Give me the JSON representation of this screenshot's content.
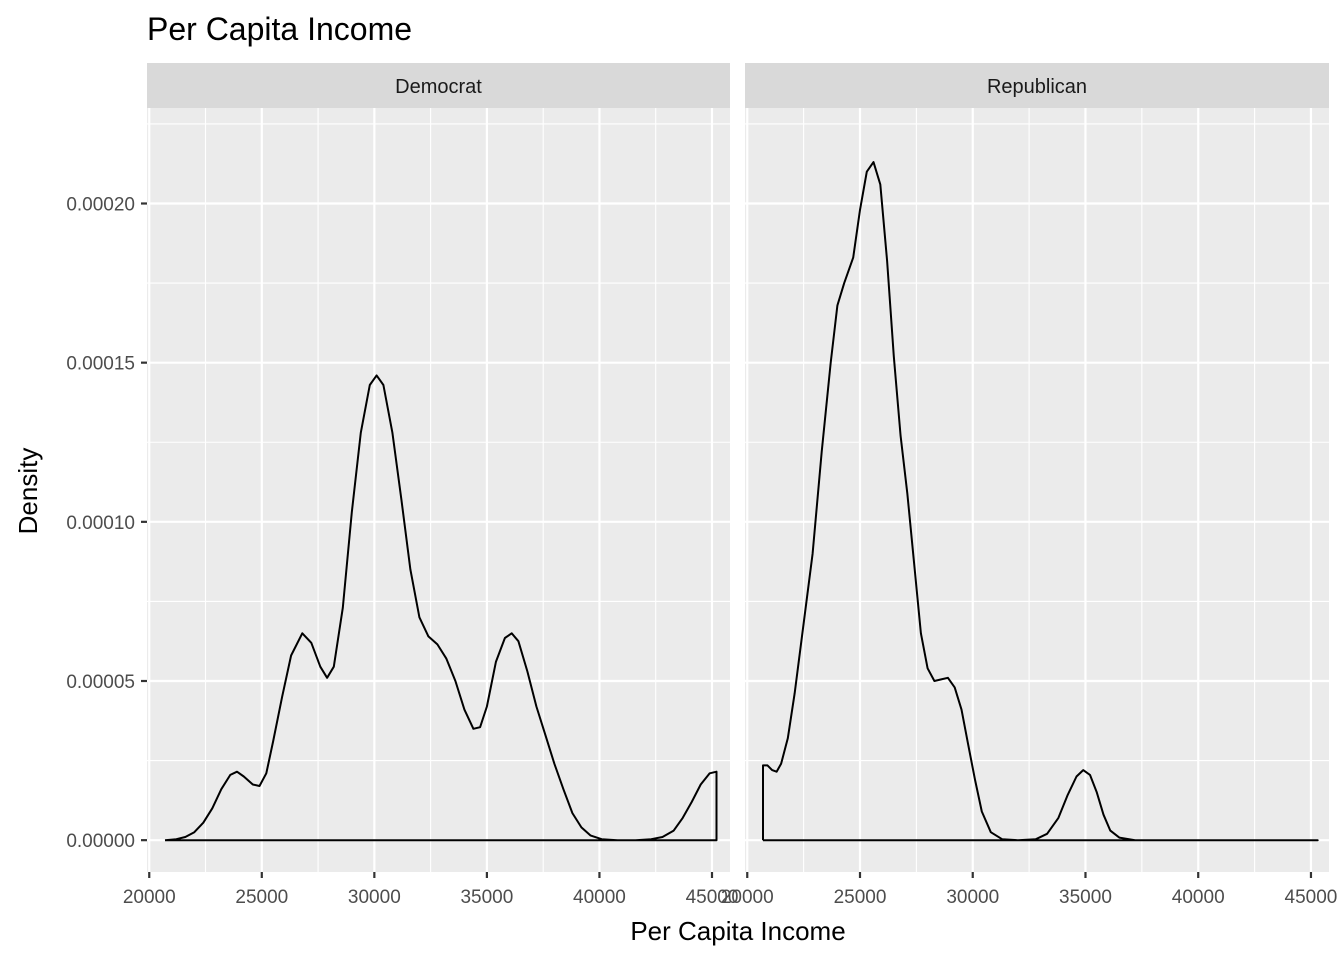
{
  "chart_data": {
    "type": "area",
    "title": "Per Capita Income",
    "xlabel": "Per Capita Income",
    "ylabel": "Density",
    "xlim": [
      19900,
      45800
    ],
    "ylim": [
      -1e-05,
      0.00023
    ],
    "x_ticks": [
      20000,
      25000,
      30000,
      35000,
      40000,
      45000
    ],
    "x_tick_labels": [
      "20000",
      "25000",
      "30000",
      "35000",
      "40000",
      "45000"
    ],
    "y_ticks": [
      0,
      5e-05,
      0.0001,
      0.00015,
      0.0002
    ],
    "y_tick_labels": [
      "0.00000",
      "0.00005",
      "0.00010",
      "0.00015",
      "0.00020"
    ],
    "grid": true,
    "facets": [
      {
        "label": "Democrat",
        "points": [
          [
            20700,
            0
          ],
          [
            21200,
            3e-07
          ],
          [
            21600,
            1e-06
          ],
          [
            22000,
            2.5e-06
          ],
          [
            22400,
            5.5e-06
          ],
          [
            22800,
            1e-05
          ],
          [
            23200,
            1.6e-05
          ],
          [
            23600,
            2.05e-05
          ],
          [
            23900,
            2.15e-05
          ],
          [
            24200,
            2e-05
          ],
          [
            24600,
            1.75e-05
          ],
          [
            24900,
            1.7e-05
          ],
          [
            25200,
            2.1e-05
          ],
          [
            25500,
            3.1e-05
          ],
          [
            25900,
            4.5e-05
          ],
          [
            26300,
            5.8e-05
          ],
          [
            26800,
            6.5e-05
          ],
          [
            27200,
            6.2e-05
          ],
          [
            27600,
            5.45e-05
          ],
          [
            27900,
            5.1e-05
          ],
          [
            28200,
            5.45e-05
          ],
          [
            28600,
            7.3e-05
          ],
          [
            29000,
            0.000103
          ],
          [
            29400,
            0.000128
          ],
          [
            29800,
            0.000143
          ],
          [
            30100,
            0.000146
          ],
          [
            30400,
            0.000143
          ],
          [
            30800,
            0.000128
          ],
          [
            31200,
            0.000107
          ],
          [
            31600,
            8.5e-05
          ],
          [
            32000,
            7e-05
          ],
          [
            32400,
            6.4e-05
          ],
          [
            32800,
            6.15e-05
          ],
          [
            33200,
            5.7e-05
          ],
          [
            33600,
            5e-05
          ],
          [
            34000,
            4.1e-05
          ],
          [
            34400,
            3.5e-05
          ],
          [
            34700,
            3.55e-05
          ],
          [
            35000,
            4.2e-05
          ],
          [
            35400,
            5.6e-05
          ],
          [
            35800,
            6.35e-05
          ],
          [
            36100,
            6.5e-05
          ],
          [
            36400,
            6.25e-05
          ],
          [
            36800,
            5.3e-05
          ],
          [
            37200,
            4.2e-05
          ],
          [
            37600,
            3.3e-05
          ],
          [
            38000,
            2.4e-05
          ],
          [
            38400,
            1.6e-05
          ],
          [
            38800,
            8.5e-06
          ],
          [
            39200,
            4e-06
          ],
          [
            39600,
            1.5e-06
          ],
          [
            40100,
            3e-07
          ],
          [
            40800,
            0
          ],
          [
            41600,
            0
          ],
          [
            42300,
            3e-07
          ],
          [
            42800,
            1e-06
          ],
          [
            43300,
            3e-06
          ],
          [
            43700,
            7e-06
          ],
          [
            44100,
            1.2e-05
          ],
          [
            44500,
            1.75e-05
          ],
          [
            44900,
            2.1e-05
          ],
          [
            45200,
            2.15e-05
          ],
          [
            45200,
            0
          ],
          [
            20700,
            0
          ]
        ]
      },
      {
        "label": "Republican",
        "points": [
          [
            20700,
            0
          ],
          [
            20700,
            2.35e-05
          ],
          [
            20900,
            2.35e-05
          ],
          [
            21100,
            2.2e-05
          ],
          [
            21300,
            2.15e-05
          ],
          [
            21500,
            2.4e-05
          ],
          [
            21800,
            3.2e-05
          ],
          [
            22100,
            4.6e-05
          ],
          [
            22500,
            6.8e-05
          ],
          [
            22900,
            9e-05
          ],
          [
            23300,
            0.000122
          ],
          [
            23700,
            0.00015
          ],
          [
            24000,
            0.000168
          ],
          [
            24300,
            0.000175
          ],
          [
            24700,
            0.000183
          ],
          [
            25000,
            0.000198
          ],
          [
            25300,
            0.00021
          ],
          [
            25600,
            0.000213
          ],
          [
            25900,
            0.000206
          ],
          [
            26200,
            0.000182
          ],
          [
            26500,
            0.000152
          ],
          [
            26800,
            0.000127
          ],
          [
            27100,
            0.000109
          ],
          [
            27400,
            8.7e-05
          ],
          [
            27700,
            6.5e-05
          ],
          [
            28000,
            5.4e-05
          ],
          [
            28300,
            5e-05
          ],
          [
            28600,
            5.05e-05
          ],
          [
            28900,
            5.1e-05
          ],
          [
            29200,
            4.8e-05
          ],
          [
            29500,
            4.1e-05
          ],
          [
            29800,
            3e-05
          ],
          [
            30100,
            1.9e-05
          ],
          [
            30400,
            9e-06
          ],
          [
            30800,
            2.5e-06
          ],
          [
            31300,
            3e-07
          ],
          [
            32000,
            0
          ],
          [
            32800,
            3e-07
          ],
          [
            33300,
            2e-06
          ],
          [
            33800,
            7e-06
          ],
          [
            34200,
            1.4e-05
          ],
          [
            34600,
            2e-05
          ],
          [
            34900,
            2.2e-05
          ],
          [
            35200,
            2.05e-05
          ],
          [
            35500,
            1.5e-05
          ],
          [
            35800,
            8e-06
          ],
          [
            36100,
            3e-06
          ],
          [
            36500,
            8e-07
          ],
          [
            37200,
            0
          ],
          [
            45300,
            0
          ],
          [
            20700,
            0
          ]
        ]
      }
    ]
  }
}
